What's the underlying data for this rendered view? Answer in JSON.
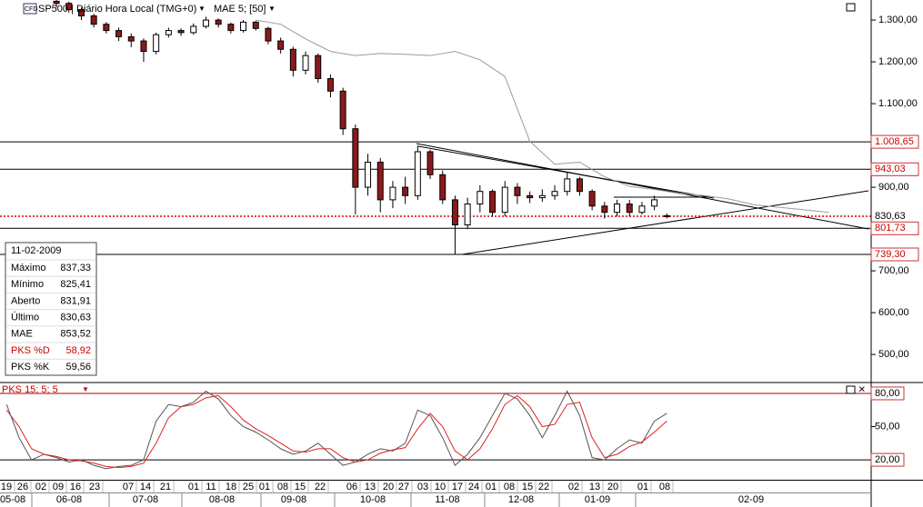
{
  "chart_data": [
    {
      "type": "candlestick",
      "title": "SP500 | Diário Hora Local (TMG+0)",
      "x": [
        0,
        1,
        2,
        3,
        4,
        5,
        6,
        7,
        8,
        9,
        10,
        11,
        12,
        13,
        14,
        15,
        16,
        17,
        18,
        19,
        20,
        21,
        22,
        23,
        24,
        25,
        26,
        27,
        28,
        29,
        30,
        31,
        32,
        33,
        34,
        35,
        36,
        37,
        38,
        39,
        40,
        41,
        42,
        43,
        44,
        45,
        46,
        47,
        48,
        49
      ],
      "open": [
        1345,
        1340,
        1325,
        1310,
        1290,
        1275,
        1260,
        1250,
        1225,
        1265,
        1275,
        1270,
        1285,
        1300,
        1290,
        1275,
        1295,
        1280,
        1250,
        1230,
        1180,
        1215,
        1160,
        1130,
        1040,
        900,
        960,
        870,
        900,
        880,
        985,
        930,
        870,
        810,
        860,
        890,
        840,
        900,
        880,
        875,
        880,
        890,
        920,
        890,
        855,
        840,
        860,
        840,
        855,
        831.91
      ],
      "high": [
        1348,
        1344,
        1330,
        1315,
        1295,
        1282,
        1268,
        1256,
        1270,
        1282,
        1280,
        1292,
        1308,
        1304,
        1294,
        1300,
        1298,
        1284,
        1258,
        1236,
        1225,
        1220,
        1170,
        1138,
        1050,
        980,
        970,
        915,
        925,
        1000,
        990,
        940,
        880,
        875,
        905,
        895,
        915,
        910,
        890,
        895,
        905,
        935,
        925,
        895,
        865,
        870,
        870,
        865,
        880,
        837.33
      ],
      "low": [
        1330,
        1318,
        1300,
        1282,
        1268,
        1250,
        1235,
        1200,
        1218,
        1258,
        1262,
        1265,
        1280,
        1282,
        1268,
        1270,
        1275,
        1242,
        1220,
        1165,
        1170,
        1150,
        1115,
        1025,
        835,
        880,
        840,
        850,
        860,
        870,
        920,
        860,
        740,
        800,
        840,
        830,
        830,
        860,
        862,
        865,
        870,
        880,
        880,
        845,
        825,
        830,
        830,
        835,
        845,
        825.41
      ],
      "close": [
        1340,
        1325,
        1310,
        1290,
        1275,
        1260,
        1250,
        1225,
        1265,
        1275,
        1270,
        1285,
        1300,
        1290,
        1275,
        1295,
        1280,
        1250,
        1230,
        1180,
        1215,
        1160,
        1130,
        1040,
        900,
        960,
        870,
        900,
        880,
        985,
        930,
        870,
        810,
        860,
        890,
        840,
        900,
        880,
        875,
        880,
        890,
        920,
        890,
        855,
        840,
        860,
        840,
        855,
        870,
        830.63
      ],
      "series": [
        {
          "name": "MAE 5; [50]",
          "color": "#9a9a9a",
          "x": [
            16,
            18,
            20,
            22,
            24,
            26,
            28,
            30,
            32,
            34,
            36,
            38,
            40,
            42,
            44,
            46,
            48,
            50,
            52,
            54,
            56,
            58,
            60,
            62
          ],
          "values": [
            1300,
            1290,
            1255,
            1225,
            1215,
            1220,
            1218,
            1215,
            1225,
            1205,
            1165,
            1010,
            955,
            960,
            925,
            902,
            895,
            885,
            880,
            872,
            858,
            852,
            846,
            840
          ]
        }
      ],
      "xlim": [
        -4.53,
        65.4
      ],
      "ylim": [
        435,
        1348
      ],
      "yticks": [
        {
          "value": 1300,
          "label": "1.300,00"
        },
        {
          "value": 1200,
          "label": "1.200,00"
        },
        {
          "value": 1100,
          "label": "1.100,00"
        },
        {
          "value": 900,
          "label": "900,00"
        },
        {
          "value": 700,
          "label": "700,00"
        },
        {
          "value": 600,
          "label": "600,00"
        },
        {
          "value": 500,
          "label": "500,00"
        }
      ],
      "levels": [
        {
          "value": 1008.65,
          "label": "1.008,65"
        },
        {
          "value": 943.03,
          "label": "943,03"
        },
        {
          "value": 801.73,
          "label": "801,73"
        },
        {
          "value": 739.3,
          "label": "739,30"
        }
      ],
      "last": {
        "value": 830.63,
        "label": "830,63"
      }
    },
    {
      "type": "line",
      "title": "PKS 15; 5; 5",
      "x": [
        -4,
        -3,
        -2,
        -1,
        0,
        1,
        2,
        3,
        4,
        5,
        6,
        7,
        8,
        9,
        10,
        11,
        12,
        13,
        14,
        15,
        16,
        17,
        18,
        19,
        20,
        21,
        22,
        23,
        24,
        25,
        26,
        27,
        28,
        29,
        30,
        31,
        32,
        33,
        34,
        35,
        36,
        37,
        38,
        39,
        40,
        41,
        42,
        43,
        44,
        45,
        46,
        47,
        48,
        49
      ],
      "series": [
        {
          "color": "#555555",
          "values": [
            70,
            40,
            20,
            25,
            22,
            18,
            20,
            15,
            12,
            14,
            15,
            20,
            55,
            70,
            68,
            72,
            82,
            75,
            60,
            50,
            45,
            38,
            30,
            25,
            28,
            35,
            25,
            15,
            18,
            25,
            30,
            28,
            35,
            65,
            60,
            40,
            15,
            25,
            40,
            60,
            80,
            75,
            60,
            40,
            60,
            82,
            60,
            22,
            20,
            30,
            38,
            35,
            55,
            62
          ]
        },
        {
          "color": "#e02020",
          "values": [
            65,
            50,
            30,
            25,
            23,
            20,
            19,
            17,
            14,
            13,
            14,
            17,
            35,
            58,
            68,
            70,
            76,
            78,
            68,
            56,
            48,
            42,
            35,
            28,
            27,
            30,
            30,
            22,
            18,
            20,
            26,
            29,
            31,
            48,
            62,
            50,
            28,
            20,
            30,
            48,
            70,
            78,
            68,
            50,
            52,
            70,
            72,
            40,
            22,
            25,
            32,
            36,
            45,
            55
          ]
        }
      ],
      "xlim": [
        -4.53,
        65.4
      ],
      "ylim": [
        2,
        89
      ],
      "yticks": [
        {
          "value": 80,
          "label": "80,00"
        },
        {
          "value": 50,
          "label": "50,00"
        },
        {
          "value": 20,
          "label": "20,00"
        }
      ],
      "day_labels": [
        "19",
        "26",
        "02",
        "09",
        "16",
        "23",
        "07",
        "14",
        "21",
        "01",
        "11",
        "18",
        "25",
        "01",
        "08",
        "15",
        "22",
        "06",
        "13",
        "20",
        "27",
        "03",
        "10",
        "17",
        "24",
        "01",
        "08",
        "15",
        "22",
        "02",
        "13",
        "20",
        "01",
        "08"
      ],
      "month_labels": [
        "05-08",
        "06-08",
        "07-08",
        "08-08",
        "09-08",
        "10-08",
        "11-08",
        "12-08",
        "01-09",
        "02-09"
      ]
    }
  ],
  "info_box": {
    "date": "11-02-2009",
    "rows": [
      [
        "Máximo",
        "837,33"
      ],
      [
        "Mínimo",
        "825,41"
      ],
      [
        "Aberto",
        "831,91"
      ],
      [
        "Último",
        "830,63"
      ],
      [
        "MAE",
        "853,52"
      ],
      [
        "PKS %D",
        "58,92"
      ],
      [
        "PKS %K",
        "59,56"
      ]
    ]
  }
}
